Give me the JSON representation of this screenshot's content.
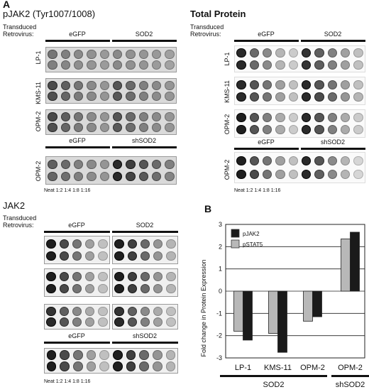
{
  "panel_a": {
    "letter": "A",
    "pjak2": {
      "title": "pJAK2 (Tyr1007/1008)",
      "transduced_line1": "Transduced",
      "transduced_line2": "Retrovirus:",
      "group1": "eGFP",
      "group2": "SOD2",
      "rows": [
        "LP-1",
        "KMS-11",
        "OPM-2"
      ],
      "sub_group1": "eGFP",
      "sub_group2": "shSOD2",
      "sub_row": "OPM-2",
      "dilutions": "Neat 1:2 1:4 1:8 1:16"
    },
    "total": {
      "title": "Total Protein",
      "transduced_line1": "Transduced",
      "transduced_line2": "Retrovirus:",
      "group1": "eGFP",
      "group2": "SOD2",
      "rows": [
        "LP-1",
        "KMS-11",
        "OPM-2"
      ],
      "sub_group1": "eGFP",
      "sub_group2": "shSOD2",
      "sub_row": "OPM-2",
      "dilutions": "Neat 1:2 1:4 1:8 1:16"
    },
    "jak2": {
      "title": "JAK2",
      "transduced_line1": "Transduced",
      "transduced_line2": "Retrovirus:",
      "group1": "eGFP",
      "group2": "SOD2",
      "sub_group1": "eGFP",
      "sub_group2": "shSOD2",
      "dilutions": "Neat 1:2 1:4 1:8 1:16"
    }
  },
  "panel_b": {
    "letter": "B",
    "chart_data": {
      "type": "bar",
      "ylabel": "Fold change in Protein Expression",
      "ylim": [
        -3,
        3
      ],
      "yticks": [
        "3",
        "2",
        "1",
        "0",
        "-1",
        "-2",
        "-3"
      ],
      "categories": [
        "LP-1",
        "KMS-11",
        "OPM-2",
        "OPM-2"
      ],
      "groups": [
        {
          "label": "SOD2",
          "span": [
            0,
            2
          ]
        },
        {
          "label": "shSOD2",
          "span": [
            3,
            3
          ]
        }
      ],
      "legend_position": "top-left",
      "series": [
        {
          "name": "pSTAT5",
          "color": "#b8b8b8",
          "values": [
            -1.8,
            -1.9,
            -1.35,
            2.35
          ]
        },
        {
          "name": "pJAK2",
          "color": "#1a1a1a",
          "values": [
            -2.2,
            -2.75,
            -1.15,
            2.65
          ]
        }
      ]
    }
  }
}
